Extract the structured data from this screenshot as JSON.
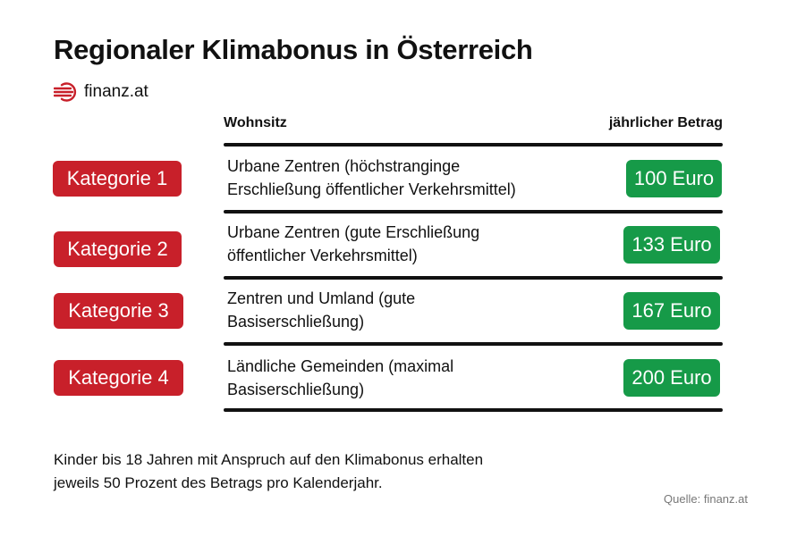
{
  "title": "Regionaler Klimabonus in Österreich",
  "brand": {
    "name": "finanz.at",
    "icon": "finanz-logo-icon",
    "color": "#c8202a"
  },
  "table": {
    "col_left": "Wohnsitz",
    "col_right": "jährlicher Betrag",
    "rows": [
      {
        "category": "Kategorie 1",
        "desc_line1": "Urbane Zentren (höchstranginge",
        "desc_line2": "Erschließung öffentlicher Verkehrsmittel)",
        "amount": "100 Euro"
      },
      {
        "category": "Kategorie 2",
        "desc_line1": "Urbane Zentren (gute Erschließung",
        "desc_line2": "öffentlicher Verkehrsmittel)",
        "amount": "133 Euro"
      },
      {
        "category": "Kategorie 3",
        "desc_line1": "Zentren und Umland (gute",
        "desc_line2": "Basiserschließung)",
        "amount": "167 Euro"
      },
      {
        "category": "Kategorie 4",
        "desc_line1": "Ländliche Gemeinden (maximal",
        "desc_line2": "Basiserschließung)",
        "amount": "200 Euro"
      }
    ]
  },
  "note": {
    "line1": "Kinder bis 18 Jahren mit Anspruch auf den Klimabonus erhalten",
    "line2": "jeweils 50 Prozent des Betrags pro Kalenderjahr."
  },
  "source": "Quelle: finanz.at",
  "colors": {
    "category": "#c8202a",
    "amount": "#169a48",
    "rule": "#111111"
  }
}
